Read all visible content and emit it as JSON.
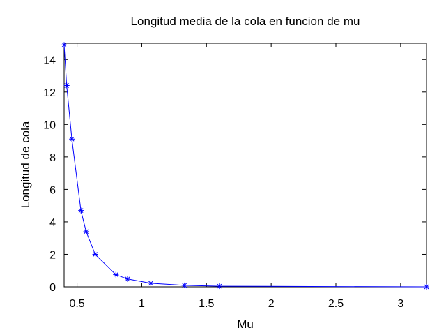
{
  "chart_data": {
    "type": "line",
    "title": "Longitud media de la cola en funcion de mu",
    "xlabel": "Mu",
    "ylabel": "Longitud de cola",
    "xlim": [
      0.4,
      3.2
    ],
    "ylim": [
      0,
      15
    ],
    "x_ticks": [
      0.5,
      1,
      1.5,
      2,
      2.5,
      3
    ],
    "x_tick_labels": [
      "0.5",
      "1",
      "1.5",
      "2",
      "2.5",
      "3"
    ],
    "y_ticks": [
      0,
      2,
      4,
      6,
      8,
      10,
      12,
      14
    ],
    "y_tick_labels": [
      "0",
      "2",
      "4",
      "6",
      "8",
      "10",
      "12",
      "14"
    ],
    "grid": false,
    "series": [
      {
        "color": "#0000ff",
        "marker": "asterisk",
        "x": [
          0.4,
          0.42,
          0.46,
          0.53,
          0.57,
          0.64,
          0.8,
          0.89,
          1.07,
          1.33,
          1.6,
          3.2
        ],
        "y": [
          14.9,
          12.4,
          9.1,
          4.7,
          3.4,
          2.0,
          0.75,
          0.48,
          0.22,
          0.09,
          0.04,
          0.0
        ]
      }
    ]
  }
}
